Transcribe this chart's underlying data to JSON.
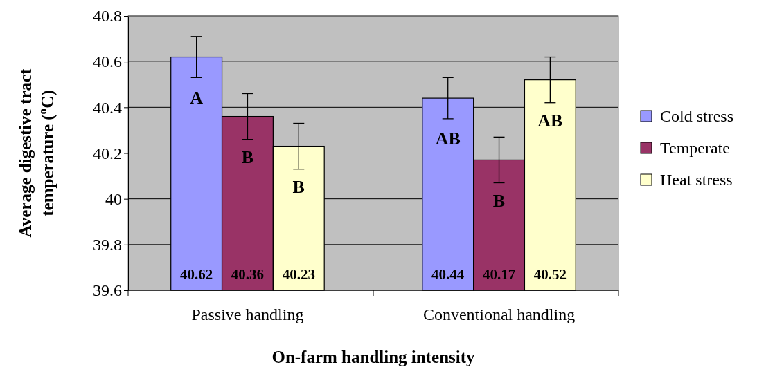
{
  "chart_data": {
    "type": "bar",
    "xlabel": "On-farm handling intensity",
    "ylabel": "Average digestive tract temperature ($^{o}$C)",
    "categories": [
      "Passive handling",
      "Conventional handling"
    ],
    "series": [
      {
        "name": "Cold stress",
        "color": "#9999ff",
        "values": [
          40.62,
          40.44
        ],
        "errors": [
          0.09,
          0.09
        ]
      },
      {
        "name": "Temperate",
        "color": "#993366",
        "values": [
          40.36,
          40.17
        ],
        "errors": [
          0.1,
          0.1
        ]
      },
      {
        "name": "Heat stress",
        "color": "#ffffcc",
        "values": [
          40.23,
          40.52
        ],
        "errors": [
          0.1,
          0.1
        ]
      }
    ],
    "ylim": [
      39.6,
      40.8
    ],
    "yticks": [
      39.6,
      39.8,
      40,
      40.2,
      40.4,
      40.6,
      40.8
    ],
    "grid": "y",
    "legend": "right",
    "data_labels": true,
    "annotations": [
      "A",
      "B",
      "B",
      "AB",
      "B",
      "AB"
    ]
  }
}
